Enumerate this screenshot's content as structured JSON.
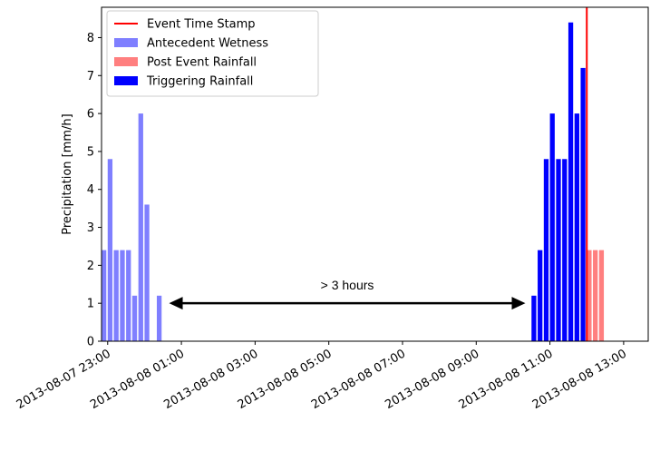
{
  "chart_data": {
    "type": "bar",
    "title": "",
    "xlabel": "",
    "ylabel": "Precipitation [mm/h]",
    "ylim": [
      0,
      8.8
    ],
    "xlim": [
      "2013-08-07 22:50",
      "2013-08-08 13:40"
    ],
    "y_ticks": [
      0,
      1,
      2,
      3,
      4,
      5,
      6,
      7,
      8
    ],
    "x_ticks": [
      "2013-08-07 23:00",
      "2013-08-08 01:00",
      "2013-08-08 03:00",
      "2013-08-08 05:00",
      "2013-08-08 07:00",
      "2013-08-08 09:00",
      "2013-08-08 11:00",
      "2013-08-08 13:00"
    ],
    "bar_interval_minutes": 10,
    "grid": false,
    "legend_position": "top-left",
    "series": [
      {
        "name": "Antecedent Wetness",
        "color": "#7f7fff",
        "points": [
          {
            "x": "2013-08-07 22:50",
            "y": 2.4
          },
          {
            "x": "2013-08-07 23:00",
            "y": 4.8
          },
          {
            "x": "2013-08-07 23:10",
            "y": 2.4
          },
          {
            "x": "2013-08-07 23:20",
            "y": 2.4
          },
          {
            "x": "2013-08-07 23:30",
            "y": 2.4
          },
          {
            "x": "2013-08-07 23:40",
            "y": 1.2
          },
          {
            "x": "2013-08-07 23:50",
            "y": 6.0
          },
          {
            "x": "2013-08-08 00:00",
            "y": 3.6
          },
          {
            "x": "2013-08-08 00:10",
            "y": 0
          },
          {
            "x": "2013-08-08 00:20",
            "y": 1.2
          }
        ]
      },
      {
        "name": "Post Event Rainfall",
        "color": "#ff7f7f",
        "points": [
          {
            "x": "2013-08-08 12:00",
            "y": 2.4
          },
          {
            "x": "2013-08-08 12:10",
            "y": 2.4
          },
          {
            "x": "2013-08-08 12:20",
            "y": 2.4
          }
        ]
      },
      {
        "name": "Triggering Rainfall",
        "color": "#0000ff",
        "points": [
          {
            "x": "2013-08-08 10:30",
            "y": 1.2
          },
          {
            "x": "2013-08-08 10:40",
            "y": 2.4
          },
          {
            "x": "2013-08-08 10:50",
            "y": 4.8
          },
          {
            "x": "2013-08-08 11:00",
            "y": 6.0
          },
          {
            "x": "2013-08-08 11:10",
            "y": 4.8
          },
          {
            "x": "2013-08-08 11:20",
            "y": 4.8
          },
          {
            "x": "2013-08-08 11:30",
            "y": 8.4
          },
          {
            "x": "2013-08-08 11:40",
            "y": 6.0
          },
          {
            "x": "2013-08-08 11:50",
            "y": 7.2
          }
        ]
      }
    ],
    "event_line": {
      "name": "Event Time Stamp",
      "x": "2013-08-08 12:00",
      "color": "#ff0000"
    },
    "annotation": {
      "text": "> 3 hours",
      "x_start": "2013-08-08 00:40",
      "x_end": "2013-08-08 10:20",
      "y": 1.0
    },
    "legend": [
      {
        "label": "Event Time Stamp",
        "kind": "line",
        "color": "#ff0000"
      },
      {
        "label": "Antecedent Wetness",
        "kind": "patch",
        "color": "#7f7fff"
      },
      {
        "label": "Post Event Rainfall",
        "kind": "patch",
        "color": "#ff7f7f"
      },
      {
        "label": "Triggering Rainfall",
        "kind": "patch",
        "color": "#0000ff"
      }
    ]
  }
}
